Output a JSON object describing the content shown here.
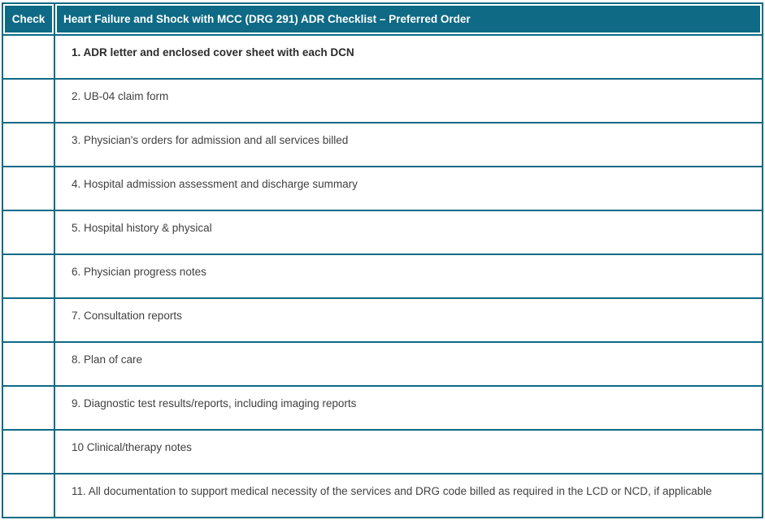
{
  "table": {
    "check_header": "Check",
    "title": "Heart Failure and Shock with MCC (DRG 291) ADR Checklist – Preferred Order",
    "rows": [
      {
        "label": "1. ADR letter and enclosed cover sheet with each DCN"
      },
      {
        "label": "2. UB-04 claim form"
      },
      {
        "label": "3. Physician's orders for admission and all services billed"
      },
      {
        "label": "4. Hospital admission assessment and discharge summary"
      },
      {
        "label": "5. Hospital history & physical"
      },
      {
        "label": "6. Physician progress notes"
      },
      {
        "label": "7. Consultation reports"
      },
      {
        "label": "8. Plan of care"
      },
      {
        "label": "9. Diagnostic test results/reports, including imaging reports"
      },
      {
        "label": "10 Clinical/therapy notes"
      },
      {
        "label": "11. All documentation to support medical necessity of the services and DRG code billed as required in the LCD or NCD, if applicable"
      }
    ],
    "colors": {
      "teal": "#0E6A85",
      "header_text": "#FFFFFF",
      "body_text": "#404040"
    }
  }
}
